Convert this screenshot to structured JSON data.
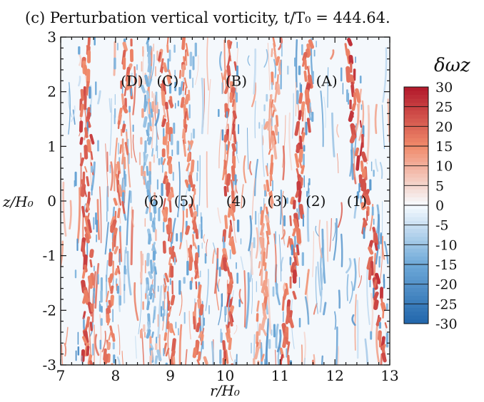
{
  "chart_data": {
    "type": "heatmap",
    "title": "(c) Perturbation vertical vorticity, t/T₀ = 444.64.",
    "xlabel": "r/H₀",
    "ylabel": "z/H₀",
    "xlim": [
      7,
      13
    ],
    "ylim": [
      -3,
      3
    ],
    "xticks": [
      "7",
      "8",
      "9",
      "10",
      "11",
      "12",
      "13"
    ],
    "yticks": [
      "3",
      "2",
      "1",
      "0",
      "-1",
      "-2",
      "-3"
    ],
    "colorbar": {
      "title": "δωz",
      "range": [
        -30,
        30
      ],
      "ticks": [
        "30",
        "25",
        "20",
        "15",
        "10",
        "5",
        "0",
        "-5",
        "-10",
        "-15",
        "-20",
        "-25",
        "-30"
      ],
      "colors": {
        "neg_max": "#2166ac",
        "neg_mid": "#6ea9d8",
        "neutral": "#f7fbff",
        "pos_mid": "#f08a6a",
        "pos_max": "#b2182b"
      }
    },
    "annotations": [
      {
        "label": "(D)",
        "r": 8.3,
        "z": 2.2
      },
      {
        "label": "(C)",
        "r": 8.95,
        "z": 2.2
      },
      {
        "label": "(B)",
        "r": 10.2,
        "z": 2.2
      },
      {
        "label": "(A)",
        "r": 11.85,
        "z": 2.2
      },
      {
        "label": "(6)",
        "r": 8.7,
        "z": 0
      },
      {
        "label": "(5)",
        "r": 9.25,
        "z": 0
      },
      {
        "label": "(4)",
        "r": 10.2,
        "z": 0
      },
      {
        "label": "(3)",
        "r": 10.95,
        "z": 0
      },
      {
        "label": "(2)",
        "r": 11.65,
        "z": 0
      },
      {
        "label": "(1)",
        "r": 12.4,
        "z": 0
      }
    ],
    "bands": [
      {
        "name": "band-1",
        "r_top": 12.2,
        "r_bottom": 12.95,
        "sign": 1,
        "strength": 0.9
      },
      {
        "name": "band-2",
        "r_top": 11.55,
        "r_bottom": 11.05,
        "sign": 1,
        "strength": 0.85
      },
      {
        "name": "band-3",
        "r_top": 10.95,
        "r_bottom": 10.6,
        "sign": 1,
        "strength": 0.55
      },
      {
        "name": "band-4",
        "r_top": 10.1,
        "r_bottom": 10.05,
        "sign": 1,
        "strength": 0.8
      },
      {
        "name": "band-5",
        "r_top": 9.2,
        "r_bottom": 9.55,
        "sign": 1,
        "strength": 0.7
      },
      {
        "name": "band-6",
        "r_top": 8.55,
        "r_bottom": 8.7,
        "sign": -1,
        "strength": 0.5
      },
      {
        "name": "band-C",
        "r_top": 8.9,
        "r_bottom": 9.0,
        "sign": 1,
        "strength": 0.75
      },
      {
        "name": "band-D",
        "r_top": 8.25,
        "r_bottom": 7.85,
        "sign": 1,
        "strength": 0.7
      },
      {
        "name": "band-left",
        "r_top": 7.45,
        "r_bottom": 7.5,
        "sign": 1,
        "strength": 0.85
      }
    ]
  }
}
